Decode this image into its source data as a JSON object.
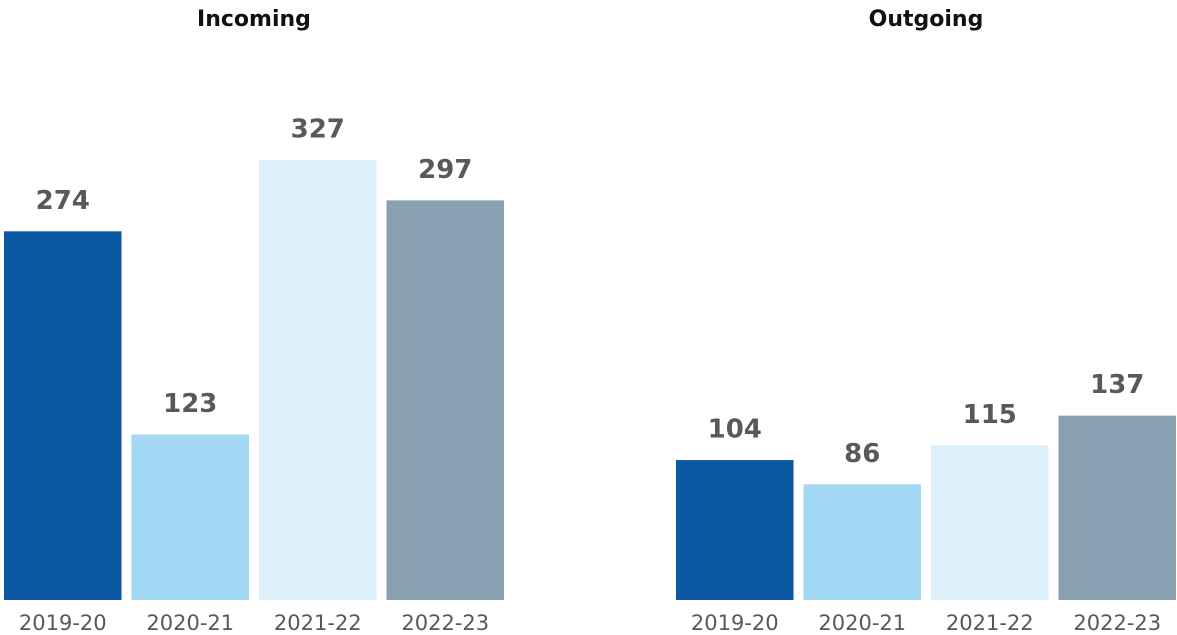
{
  "chart_data": [
    {
      "type": "bar",
      "title": "Incoming",
      "categories": [
        "2019-20",
        "2020-21",
        "2021-22",
        "2022-23"
      ],
      "values": [
        274,
        123,
        327,
        297
      ],
      "colors": [
        "#0d58a3",
        "#a3d9f5",
        "#dcf0fb",
        "#87a1b2"
      ]
    },
    {
      "type": "bar",
      "title": "Outgoing",
      "categories": [
        "2019-20",
        "2020-21",
        "2021-22",
        "2022-23"
      ],
      "values": [
        104,
        86,
        115,
        137
      ],
      "colors": [
        "#0d58a3",
        "#a3d9f5",
        "#dcf0fb",
        "#87a1b2"
      ]
    }
  ]
}
